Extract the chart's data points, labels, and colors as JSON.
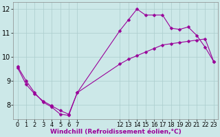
{
  "xlabel": "Windchill (Refroidissement éolien,°C)",
  "bg_color": "#cce8e8",
  "line_color": "#990099",
  "markersize": 2.5,
  "linewidth": 0.8,
  "line1_x": [
    0,
    1,
    2,
    3,
    4,
    5,
    6,
    7,
    12,
    13,
    14,
    15,
    16,
    17,
    18,
    19,
    20,
    21,
    22,
    23
  ],
  "line1_y": [
    9.6,
    9.0,
    8.5,
    8.1,
    7.9,
    7.6,
    7.55,
    8.5,
    11.1,
    11.55,
    12.0,
    11.75,
    11.75,
    11.75,
    11.2,
    11.15,
    11.25,
    10.9,
    10.4,
    9.8
  ],
  "line2_x": [
    0,
    1,
    2,
    3,
    4,
    5,
    6,
    7,
    12,
    13,
    14,
    15,
    16,
    17,
    18,
    19,
    20,
    21,
    22,
    23
  ],
  "line2_y": [
    9.55,
    8.85,
    8.45,
    8.15,
    7.95,
    7.75,
    7.6,
    8.5,
    9.7,
    9.9,
    10.05,
    10.2,
    10.35,
    10.5,
    10.55,
    10.6,
    10.65,
    10.7,
    10.75,
    9.8
  ],
  "xlim": [
    -0.5,
    23.5
  ],
  "ylim": [
    7.4,
    12.3
  ],
  "yticks": [
    8,
    9,
    10,
    11,
    12
  ],
  "xticks": [
    0,
    1,
    2,
    3,
    4,
    5,
    6,
    7,
    12,
    13,
    14,
    15,
    16,
    17,
    18,
    19,
    20,
    21,
    22,
    23
  ],
  "grid_color": "#aacccc",
  "grid_alpha": 1.0,
  "tick_fontsize": 6,
  "xlabel_fontsize": 6.5
}
